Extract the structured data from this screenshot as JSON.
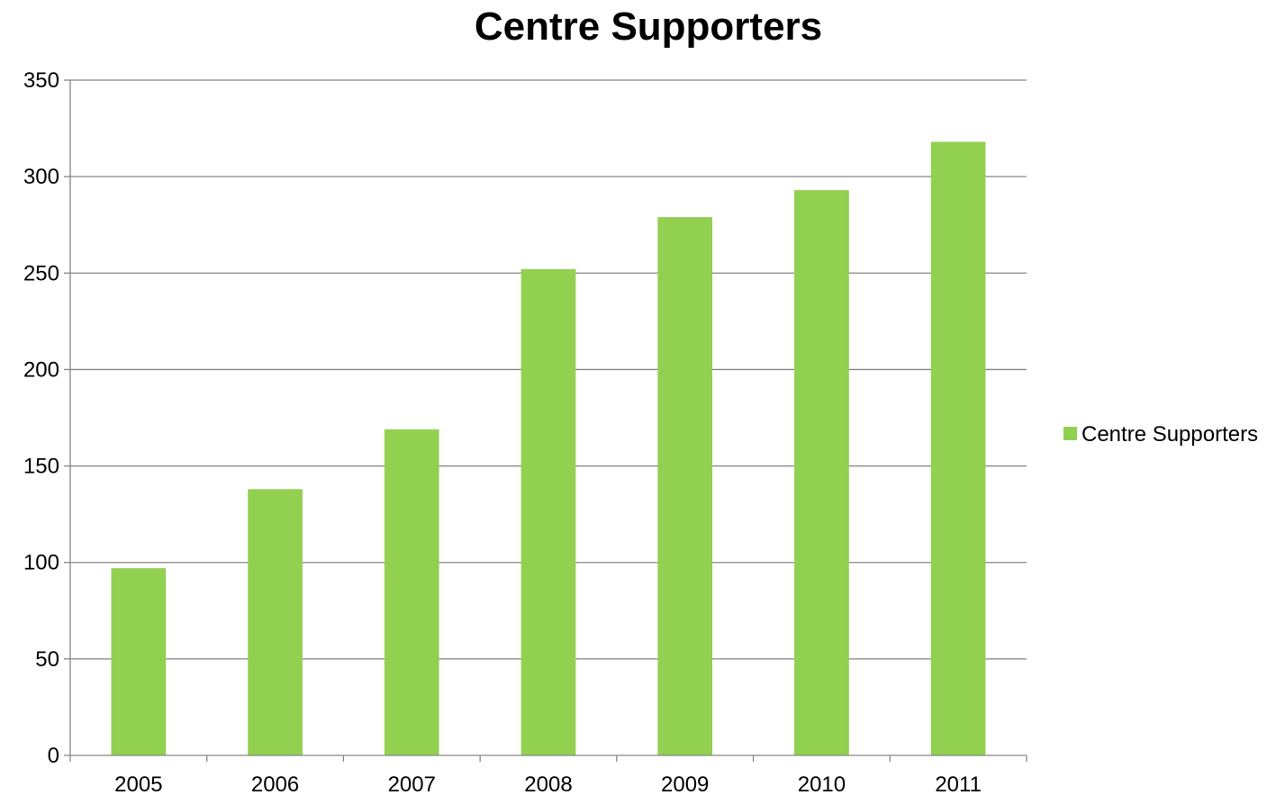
{
  "chart_data": {
    "type": "bar",
    "title": "Centre Supporters",
    "xlabel": "",
    "ylabel": "",
    "categories": [
      "2005",
      "2006",
      "2007",
      "2008",
      "2009",
      "2010",
      "2011"
    ],
    "series": [
      {
        "name": "Centre Supporters",
        "values": [
          97,
          138,
          169,
          252,
          279,
          293,
          318
        ],
        "color": "#92d050"
      }
    ],
    "ylim": [
      0,
      350
    ],
    "yticks": [
      0,
      50,
      100,
      150,
      200,
      250,
      300,
      350
    ],
    "grid": "horizontal",
    "legend_position": "right"
  }
}
